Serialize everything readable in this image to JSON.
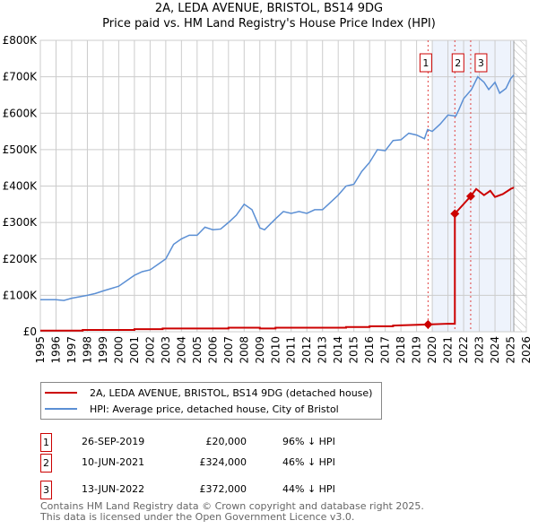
{
  "chart_data": {
    "type": "line",
    "title": "2A, LEDA AVENUE, BRISTOL, BS14 9DG",
    "subtitle": "Price paid vs. HM Land Registry's House Price Index (HPI)",
    "xlim": [
      1995,
      2026
    ],
    "ylim": [
      0,
      800000
    ],
    "x_ticks": [
      "1995",
      "1996",
      "1997",
      "1998",
      "1999",
      "2000",
      "2001",
      "2002",
      "2003",
      "2004",
      "2005",
      "2006",
      "2007",
      "2008",
      "2009",
      "2010",
      "2011",
      "2012",
      "2013",
      "2014",
      "2015",
      "2016",
      "2017",
      "2018",
      "2019",
      "2020",
      "2021",
      "2022",
      "2023",
      "2024",
      "2025",
      "2026"
    ],
    "y_ticks": [
      {
        "v": 0,
        "label": "£0"
      },
      {
        "v": 100000,
        "label": "£100K"
      },
      {
        "v": 200000,
        "label": "£200K"
      },
      {
        "v": 300000,
        "label": "£300K"
      },
      {
        "v": 400000,
        "label": "£400K"
      },
      {
        "v": 500000,
        "label": "£500K"
      },
      {
        "v": 600000,
        "label": "£600K"
      },
      {
        "v": 700000,
        "label": "£700K"
      },
      {
        "v": 800000,
        "label": "£800K"
      }
    ],
    "grid": true,
    "shaded_range": [
      2020,
      2025.2
    ],
    "hatched_range": [
      2025.2,
      2026
    ],
    "series": [
      {
        "name": "2A, LEDA AVENUE, BRISTOL, BS14 9DG (detached house)",
        "color": "#cc0000",
        "x": [
          1995,
          1997.7,
          1997.7,
          2001,
          2001,
          2002.8,
          2002.8,
          2007,
          2007,
          2009,
          2009,
          2010,
          2010,
          2014.5,
          2014.5,
          2016,
          2016,
          2017.5,
          2017.5,
          2019.73,
          2021,
          2021.44,
          2021.44,
          2022.45,
          2022.8,
          2023.3,
          2023.7,
          2024,
          2024.5,
          2025,
          2025.2
        ],
        "y": [
          3000,
          3000,
          5000,
          5000,
          7000,
          7000,
          9000,
          9000,
          11000,
          11000,
          9000,
          9000,
          11000,
          11000,
          13000,
          13000,
          15000,
          15000,
          17000,
          20000,
          22000,
          22000,
          324000,
          372000,
          392000,
          375000,
          387000,
          370000,
          378000,
          392000,
          396000
        ]
      },
      {
        "name": "HPI: Average price, detached house, City of Bristol",
        "color": "#5b8fd4",
        "x": [
          1995,
          1996,
          1996.5,
          1997,
          1998,
          1998.5,
          1999,
          2000,
          2000.5,
          2001,
          2001.5,
          2002,
          2002.5,
          2003,
          2003.5,
          2004,
          2004.5,
          2005,
          2005.5,
          2006,
          2006.5,
          2007,
          2007.5,
          2008,
          2008.5,
          2009,
          2009.3,
          2010,
          2010.5,
          2011,
          2011.5,
          2012,
          2012.5,
          2013,
          2013.5,
          2014,
          2014.5,
          2015,
          2015.5,
          2016,
          2016.5,
          2017,
          2017.5,
          2018,
          2018.5,
          2019,
          2019.5,
          2019.7,
          2020,
          2020.5,
          2021,
          2021.5,
          2021.7,
          2022,
          2022.5,
          2022.9,
          2023.3,
          2023.6,
          2024,
          2024.3,
          2024.7,
          2025,
          2025.2
        ],
        "y": [
          88000,
          88000,
          86000,
          92000,
          100000,
          105000,
          112000,
          125000,
          140000,
          155000,
          165000,
          170000,
          185000,
          200000,
          240000,
          255000,
          265000,
          265000,
          287000,
          280000,
          282000,
          300000,
          320000,
          350000,
          335000,
          285000,
          280000,
          310000,
          330000,
          325000,
          330000,
          325000,
          335000,
          335000,
          355000,
          375000,
          400000,
          405000,
          440000,
          465000,
          500000,
          497000,
          525000,
          527000,
          545000,
          540000,
          530000,
          555000,
          550000,
          570000,
          595000,
          592000,
          610000,
          640000,
          665000,
          700000,
          685000,
          665000,
          685000,
          655000,
          668000,
          695000,
          705000
        ]
      }
    ],
    "sales": [
      {
        "id": "1",
        "x": 2019.73,
        "y": 20000,
        "date": "26-SEP-2019",
        "price": "£20,000",
        "hpi": "96% ↓ HPI"
      },
      {
        "id": "2",
        "x": 2021.44,
        "y": 324000,
        "date": "10-JUN-2021",
        "price": "£324,000",
        "hpi": "46% ↓ HPI"
      },
      {
        "id": "3",
        "x": 2022.45,
        "y": 372000,
        "date": "13-JUN-2022",
        "price": "£372,000",
        "hpi": "44% ↓ HPI"
      }
    ]
  },
  "footer": {
    "line1": "Contains HM Land Registry data © Crown copyright and database right 2025.",
    "line2": "This data is licensed under the Open Government Licence v3.0."
  }
}
